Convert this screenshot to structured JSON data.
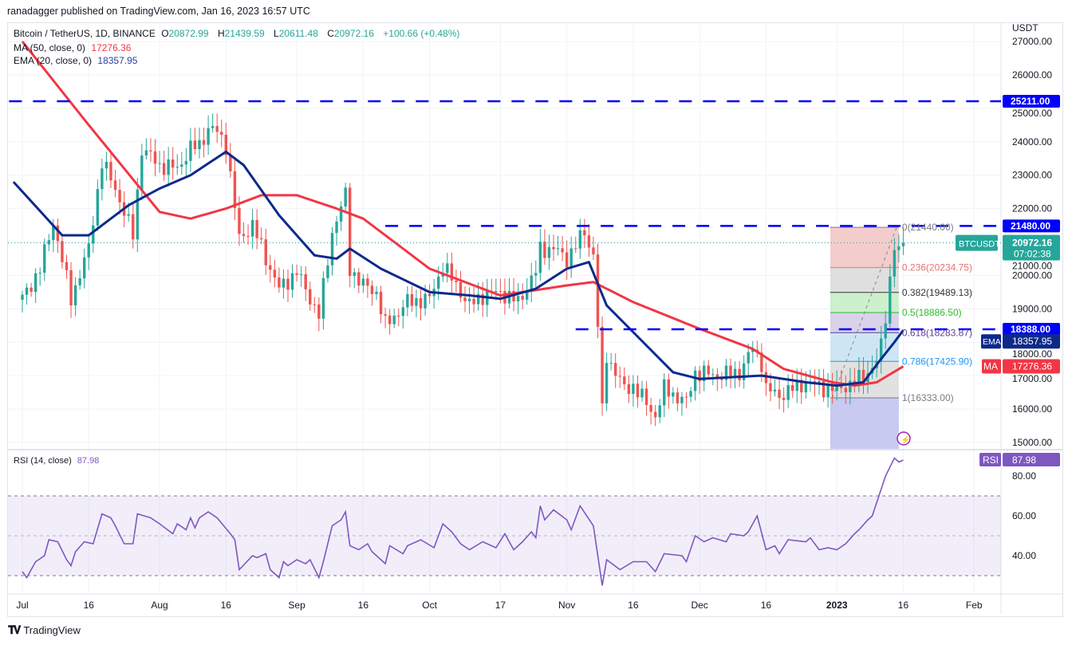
{
  "header": {
    "publish_line": "ranadagger published on TradingView.com, Jan 16, 2023 16:57 UTC",
    "symbol": "Bitcoin / TetherUS, 1D, BINANCE",
    "open_label": "O",
    "open": "20872.99",
    "high_label": "H",
    "high": "21439.59",
    "low_label": "L",
    "low": "20611.48",
    "close_label": "C",
    "close": "20972.16",
    "change": "+100.66 (+0.48%)",
    "ma_label": "MA (50, close, 0)",
    "ma_value": "17276.36",
    "ema_label": "EMA (20, close, 0)",
    "ema_value": "18357.95",
    "rsi_label": "RSI (14, close)",
    "rsi_value": "87.98"
  },
  "footer": {
    "logo_mark": "17",
    "brand": "TradingView"
  },
  "colors": {
    "up": "#26a69a",
    "down": "#ef5350",
    "ma": "#f23645",
    "ema": "#0d2a8a",
    "rsi": "#7e57c2",
    "level": "#0000ff"
  },
  "chart_data": {
    "type": "candlestick",
    "currency_label": "USDT",
    "price_ylim": [
      14800,
      27200
    ],
    "price_ticks": [
      "15000.00",
      "16000.00",
      "17000.00",
      "18000.00",
      "19000.00",
      "20000.00",
      "21000.00",
      "22000.00",
      "23000.00",
      "24000.00",
      "25000.00",
      "26000.00",
      "27000.00"
    ],
    "x_day_range": [
      -3,
      227
    ],
    "time_ticks": [
      {
        "label": "Jul",
        "day": 0
      },
      {
        "label": "16",
        "day": 15
      },
      {
        "label": "Aug",
        "day": 31
      },
      {
        "label": "16",
        "day": 46
      },
      {
        "label": "Sep",
        "day": 62
      },
      {
        "label": "16",
        "day": 77
      },
      {
        "label": "Oct",
        "day": 92
      },
      {
        "label": "17",
        "day": 108
      },
      {
        "label": "Nov",
        "day": 123
      },
      {
        "label": "16",
        "day": 138
      },
      {
        "label": "Dec",
        "day": 153
      },
      {
        "label": "16",
        "day": 168
      },
      {
        "label": "2023",
        "day": 184
      },
      {
        "label": "16",
        "day": 199
      },
      {
        "label": "Feb",
        "day": 215
      }
    ],
    "close_keypoints": [
      [
        0,
        19300
      ],
      [
        4,
        20200
      ],
      [
        7,
        21600
      ],
      [
        11,
        19300
      ],
      [
        15,
        20800
      ],
      [
        18,
        23400
      ],
      [
        21,
        22600
      ],
      [
        25,
        21200
      ],
      [
        27,
        23800
      ],
      [
        31,
        23300
      ],
      [
        35,
        23200
      ],
      [
        38,
        23800
      ],
      [
        40,
        23900
      ],
      [
        42,
        24400
      ],
      [
        44,
        24300
      ],
      [
        46,
        23900
      ],
      [
        49,
        21100
      ],
      [
        52,
        21500
      ],
      [
        56,
        20200
      ],
      [
        58,
        19600
      ],
      [
        62,
        20100
      ],
      [
        67,
        18800
      ],
      [
        70,
        21300
      ],
      [
        73,
        22400
      ],
      [
        74,
        20200
      ],
      [
        77,
        19700
      ],
      [
        80,
        19500
      ],
      [
        82,
        18500
      ],
      [
        87,
        19200
      ],
      [
        92,
        19300
      ],
      [
        95,
        20300
      ],
      [
        101,
        19100
      ],
      [
        104,
        19400
      ],
      [
        108,
        19500
      ],
      [
        112,
        19200
      ],
      [
        116,
        20100
      ],
      [
        117,
        20800
      ],
      [
        120,
        20800
      ],
      [
        123,
        20500
      ],
      [
        127,
        21300
      ],
      [
        129,
        20600
      ],
      [
        130,
        18500
      ],
      [
        131,
        15900
      ],
      [
        132,
        17600
      ],
      [
        136,
        16600
      ],
      [
        138,
        16700
      ],
      [
        143,
        15800
      ],
      [
        145,
        16600
      ],
      [
        150,
        16200
      ],
      [
        152,
        17100
      ],
      [
        157,
        17000
      ],
      [
        162,
        17100
      ],
      [
        165,
        17800
      ],
      [
        167,
        17400
      ],
      [
        168,
        16600
      ],
      [
        171,
        16400
      ],
      [
        177,
        16800
      ],
      [
        182,
        16600
      ],
      [
        184,
        16600
      ],
      [
        188,
        16800
      ],
      [
        191,
        17100
      ],
      [
        193,
        17400
      ],
      [
        194,
        17900
      ],
      [
        195,
        18800
      ],
      [
        196,
        19900
      ],
      [
        197,
        20900
      ],
      [
        198,
        20870
      ]
    ],
    "last_candle": {
      "day": 199,
      "open": 20872.99,
      "high": 21439.59,
      "low": 20611.48,
      "close": 20972.16
    },
    "ma50": [
      [
        0,
        27000
      ],
      [
        15,
        24500
      ],
      [
        31,
        21900
      ],
      [
        38,
        21700
      ],
      [
        46,
        22000
      ],
      [
        54,
        22400
      ],
      [
        62,
        22400
      ],
      [
        71,
        22000
      ],
      [
        77,
        21700
      ],
      [
        92,
        20200
      ],
      [
        108,
        19400
      ],
      [
        123,
        19700
      ],
      [
        129,
        19800
      ],
      [
        138,
        19200
      ],
      [
        153,
        18400
      ],
      [
        165,
        17800
      ],
      [
        172,
        17200
      ],
      [
        183,
        16800
      ],
      [
        188,
        16700
      ],
      [
        193,
        16800
      ],
      [
        199,
        17276
      ]
    ],
    "ema20": [
      [
        -2,
        22800
      ],
      [
        9,
        21200
      ],
      [
        15,
        21200
      ],
      [
        24,
        22100
      ],
      [
        31,
        22600
      ],
      [
        38,
        23000
      ],
      [
        46,
        23700
      ],
      [
        50,
        23300
      ],
      [
        58,
        21800
      ],
      [
        66,
        20600
      ],
      [
        71,
        20500
      ],
      [
        74,
        20800
      ],
      [
        81,
        20200
      ],
      [
        92,
        19500
      ],
      [
        101,
        19400
      ],
      [
        108,
        19300
      ],
      [
        116,
        19600
      ],
      [
        123,
        20200
      ],
      [
        128,
        20400
      ],
      [
        132,
        19100
      ],
      [
        138,
        18300
      ],
      [
        147,
        17100
      ],
      [
        153,
        16900
      ],
      [
        167,
        17000
      ],
      [
        177,
        16800
      ],
      [
        184,
        16700
      ],
      [
        190,
        16800
      ],
      [
        194,
        17500
      ],
      [
        197,
        18000
      ],
      [
        199,
        18358
      ]
    ],
    "horizontal_levels": [
      {
        "price": 25211,
        "label": "25211.00",
        "from_day": -3
      },
      {
        "price": 21480,
        "label": "21480.00",
        "from_day": 82
      },
      {
        "price": 18388,
        "label": "18388.00",
        "from_day": 125
      }
    ],
    "last_price_tag": {
      "symbol": "BTCUSDT",
      "price": 20972.16,
      "label": "20972.16",
      "countdown": "07:02:38"
    },
    "ema_tag": {
      "name": "EMA",
      "label": "18357.95",
      "price": 18357.95
    },
    "ma_tag": {
      "name": "MA",
      "label": "17276.36",
      "price": 17276.36
    },
    "fibonacci": {
      "from_day": 182.5,
      "to_day": 198,
      "bottom_price": 14800,
      "levels": [
        {
          "ratio": "0",
          "price": 21440.0,
          "label": "0(21440.00)",
          "color": "#787b86",
          "fill": "#f3c6c6"
        },
        {
          "ratio": "0.236",
          "price": 20234.75,
          "label": "0.236(20234.75)",
          "color": "#e57373",
          "fill": "#dcdcdc"
        },
        {
          "ratio": "0.382",
          "price": 19489.13,
          "label": "0.382(19489.13)",
          "color": "#333333",
          "fill": "#c6eec6"
        },
        {
          "ratio": "0.5",
          "price": 18886.5,
          "label": "0.5(18886.50)",
          "color": "#2bbd2b",
          "fill": "#d6cce8"
        },
        {
          "ratio": "0.618",
          "price": 18283.87,
          "label": "0.618(18283.87)",
          "color": "#5e3c99",
          "fill": "#c9e3f2"
        },
        {
          "ratio": "0.786",
          "price": 17425.9,
          "label": "0.786(17425.90)",
          "color": "#2196f3",
          "fill": "#dedede"
        },
        {
          "ratio": "1",
          "price": 16333.0,
          "label": "1(16333.00)",
          "color": "#787b86",
          "fill": "#c3c4f0"
        }
      ]
    },
    "rsi": {
      "ylim": [
        22,
        92
      ],
      "ticks": [
        "40.00",
        "60.00",
        "80.00"
      ],
      "bands": [
        30,
        50,
        70
      ],
      "tag": {
        "name": "RSI",
        "label": "87.98"
      },
      "values": [
        [
          0,
          32
        ],
        [
          1,
          29
        ],
        [
          3,
          37
        ],
        [
          5,
          40
        ],
        [
          6,
          48
        ],
        [
          8,
          47
        ],
        [
          10,
          38
        ],
        [
          11,
          35
        ],
        [
          12,
          42
        ],
        [
          14,
          47
        ],
        [
          16,
          46
        ],
        [
          18,
          61
        ],
        [
          20,
          59
        ],
        [
          21,
          55
        ],
        [
          23,
          46
        ],
        [
          25,
          46
        ],
        [
          26,
          61
        ],
        [
          29,
          59
        ],
        [
          31,
          56
        ],
        [
          34,
          51
        ],
        [
          35,
          56
        ],
        [
          37,
          53
        ],
        [
          38,
          59
        ],
        [
          39,
          54
        ],
        [
          40,
          59
        ],
        [
          42,
          62
        ],
        [
          44,
          59
        ],
        [
          47,
          51
        ],
        [
          48,
          48
        ],
        [
          49,
          33
        ],
        [
          52,
          40
        ],
        [
          53,
          39
        ],
        [
          55,
          41
        ],
        [
          56,
          33
        ],
        [
          58,
          29
        ],
        [
          59,
          37
        ],
        [
          60,
          35
        ],
        [
          62,
          38
        ],
        [
          64,
          36
        ],
        [
          65,
          38
        ],
        [
          67,
          29
        ],
        [
          68,
          37
        ],
        [
          70,
          55
        ],
        [
          72,
          58
        ],
        [
          73,
          62
        ],
        [
          74,
          45
        ],
        [
          76,
          43
        ],
        [
          78,
          46
        ],
        [
          79,
          42
        ],
        [
          82,
          36
        ],
        [
          83,
          45
        ],
        [
          86,
          41
        ],
        [
          87,
          45
        ],
        [
          90,
          48
        ],
        [
          93,
          44
        ],
        [
          95,
          56
        ],
        [
          97,
          52
        ],
        [
          99,
          46
        ],
        [
          101,
          43
        ],
        [
          104,
          47
        ],
        [
          107,
          44
        ],
        [
          109,
          51
        ],
        [
          111,
          43
        ],
        [
          113,
          47
        ],
        [
          115,
          52
        ],
        [
          116,
          49
        ],
        [
          117,
          65
        ],
        [
          118,
          58
        ],
        [
          120,
          63
        ],
        [
          123,
          58
        ],
        [
          124,
          53
        ],
        [
          126,
          65
        ],
        [
          129,
          55
        ],
        [
          131,
          25
        ],
        [
          132,
          38
        ],
        [
          135,
          33
        ],
        [
          138,
          37
        ],
        [
          141,
          37
        ],
        [
          143,
          32
        ],
        [
          145,
          41
        ],
        [
          149,
          40
        ],
        [
          150,
          37
        ],
        [
          152,
          50
        ],
        [
          154,
          47
        ],
        [
          156,
          49
        ],
        [
          159,
          47
        ],
        [
          160,
          51
        ],
        [
          163,
          50
        ],
        [
          164,
          52
        ],
        [
          166,
          60
        ],
        [
          168,
          43
        ],
        [
          170,
          45
        ],
        [
          171,
          41
        ],
        [
          173,
          48
        ],
        [
          177,
          47
        ],
        [
          178,
          49
        ],
        [
          180,
          43
        ],
        [
          182,
          44
        ],
        [
          184,
          43
        ],
        [
          186,
          46
        ],
        [
          188,
          51
        ],
        [
          189,
          53
        ],
        [
          191,
          58
        ],
        [
          192,
          60
        ],
        [
          195,
          80
        ],
        [
          197,
          89
        ],
        [
          198,
          87
        ],
        [
          199,
          88
        ]
      ]
    }
  }
}
